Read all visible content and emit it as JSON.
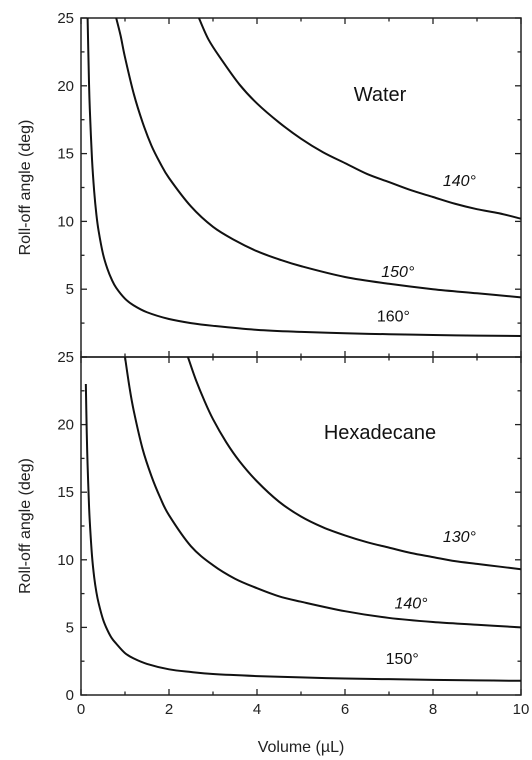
{
  "chart_data": [
    {
      "type": "line",
      "title": "Water",
      "xlabel": "",
      "ylabel": "Roll-off angle (deg)",
      "xlim": [
        0,
        10
      ],
      "ylim": [
        0,
        25
      ],
      "xticks": [],
      "yticks": [
        "5",
        "10",
        "15",
        "20",
        "25"
      ],
      "grid": false,
      "series": [
        {
          "name": "140°",
          "italic": true,
          "label_at": [
            8.6,
            12.6
          ],
          "x": [
            2.68,
            2.9,
            3.2,
            3.6,
            4.0,
            4.5,
            5.0,
            5.5,
            6.0,
            6.5,
            7.0,
            7.5,
            8.0,
            8.5,
            9.0,
            9.5,
            10.0
          ],
          "y": [
            25.0,
            23.4,
            21.9,
            20.1,
            18.7,
            17.3,
            16.1,
            15.1,
            14.3,
            13.5,
            12.9,
            12.3,
            11.8,
            11.3,
            10.9,
            10.6,
            10.2
          ]
        },
        {
          "name": "150°",
          "italic": true,
          "label_at": [
            7.2,
            5.9
          ],
          "x": [
            0.8,
            0.9,
            1.0,
            1.2,
            1.4,
            1.6,
            1.8,
            2.0,
            2.5,
            3.0,
            3.5,
            4.0,
            4.5,
            5.0,
            6.0,
            7.0,
            8.0,
            9.0,
            10.0
          ],
          "y": [
            25.0,
            23.7,
            22.1,
            19.4,
            17.3,
            15.6,
            14.3,
            13.2,
            11.1,
            9.6,
            8.6,
            7.8,
            7.2,
            6.7,
            5.9,
            5.4,
            5.0,
            4.7,
            4.4
          ]
        },
        {
          "name": "160°",
          "italic": false,
          "label_at": [
            7.1,
            2.6
          ],
          "x": [
            0.15,
            0.18,
            0.2,
            0.25,
            0.3,
            0.35,
            0.4,
            0.5,
            0.6,
            0.7,
            0.8,
            1.0,
            1.2,
            1.5,
            2.0,
            2.5,
            3.0,
            4.0,
            5.0,
            6.0,
            7.0,
            8.0,
            9.0,
            10.0
          ],
          "y": [
            25.0,
            20.5,
            18.3,
            14.6,
            12.2,
            10.5,
            9.3,
            7.6,
            6.5,
            5.7,
            5.1,
            4.3,
            3.8,
            3.3,
            2.8,
            2.5,
            2.3,
            2.0,
            1.85,
            1.75,
            1.68,
            1.62,
            1.58,
            1.55
          ]
        }
      ],
      "annotations": [
        "Water"
      ]
    },
    {
      "type": "line",
      "title": "Hexadecane",
      "xlabel": "Volume (µL)",
      "ylabel": "Roll-off angle (deg)",
      "xlim": [
        0,
        10
      ],
      "ylim": [
        0,
        25
      ],
      "xticks": [
        "0",
        "2",
        "4",
        "6",
        "8",
        "10"
      ],
      "yticks": [
        "0",
        "5",
        "10",
        "15",
        "20",
        "25"
      ],
      "grid": false,
      "series": [
        {
          "name": "130°",
          "italic": true,
          "label_at": [
            8.6,
            11.3
          ],
          "x": [
            2.43,
            2.6,
            2.8,
            3.0,
            3.3,
            3.6,
            4.0,
            4.5,
            5.0,
            5.5,
            6.0,
            6.5,
            7.0,
            7.5,
            8.0,
            8.5,
            9.0,
            9.5,
            10.0
          ],
          "y": [
            25.0,
            23.4,
            21.8,
            20.4,
            18.7,
            17.3,
            15.8,
            14.3,
            13.2,
            12.4,
            11.8,
            11.3,
            10.9,
            10.5,
            10.2,
            9.9,
            9.7,
            9.5,
            9.3
          ]
        },
        {
          "name": "140°",
          "italic": true,
          "label_at": [
            7.5,
            6.4
          ],
          "x": [
            1.0,
            1.1,
            1.2,
            1.4,
            1.6,
            1.8,
            2.0,
            2.5,
            3.0,
            3.5,
            4.0,
            4.5,
            5.0,
            6.0,
            7.0,
            8.0,
            9.0,
            10.0
          ],
          "y": [
            25.0,
            22.8,
            21.0,
            18.2,
            16.2,
            14.6,
            13.3,
            11.0,
            9.6,
            8.6,
            7.9,
            7.3,
            6.9,
            6.2,
            5.7,
            5.4,
            5.2,
            5.0
          ]
        },
        {
          "name": "150°",
          "italic": false,
          "label_at": [
            7.3,
            2.3
          ],
          "x": [
            0.11,
            0.13,
            0.15,
            0.18,
            0.2,
            0.25,
            0.3,
            0.35,
            0.4,
            0.5,
            0.6,
            0.7,
            0.8,
            1.0,
            1.2,
            1.5,
            2.0,
            2.5,
            3.0,
            4.0,
            5.0,
            6.0,
            7.0,
            8.0,
            9.0,
            10.0
          ],
          "y": [
            23.0,
            19.5,
            17.0,
            14.2,
            12.8,
            10.3,
            8.7,
            7.6,
            6.8,
            5.6,
            4.8,
            4.2,
            3.8,
            3.1,
            2.7,
            2.3,
            1.9,
            1.7,
            1.55,
            1.4,
            1.3,
            1.22,
            1.17,
            1.12,
            1.08,
            1.05
          ]
        }
      ],
      "annotations": [
        "Hexadecane"
      ]
    }
  ]
}
